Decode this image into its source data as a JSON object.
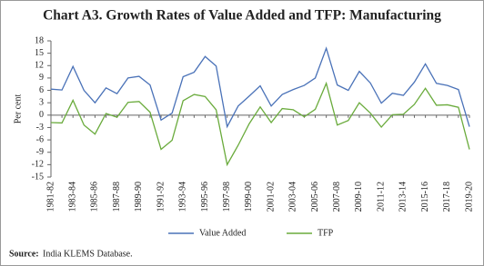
{
  "chart_data": {
    "type": "line",
    "title": "Chart A3. Growth Rates of Value Added and TFP: Manufacturing",
    "y_label": "Per cent",
    "source_label": "Source:",
    "source": "India KLEMS Database.",
    "categories": [
      "1981-82",
      null,
      "1983-84",
      null,
      "1985-86",
      null,
      "1987-88",
      null,
      "1989-90",
      null,
      "1991-92",
      null,
      "1993-94",
      null,
      "1995-96",
      null,
      "1997-98",
      null,
      "1999-00",
      null,
      "2001-02",
      null,
      "2003-04",
      null,
      "2005-06",
      null,
      "2007-08",
      null,
      "2009-10",
      null,
      "2011-12",
      null,
      "2013-14",
      null,
      "2015-16",
      null,
      "2017-18",
      null,
      "2019-20"
    ],
    "series": [
      {
        "name": "Value Added",
        "color": "#4a72b8",
        "values": [
          6.3,
          6.1,
          11.8,
          6.0,
          3.0,
          6.6,
          5.2,
          9.0,
          9.4,
          7.3,
          -1.2,
          0.5,
          9.3,
          10.4,
          14.2,
          11.9,
          -2.8,
          2.2,
          4.6,
          7.1,
          2.2,
          5.0,
          6.2,
          7.2,
          9.0,
          16.2,
          7.3,
          6.0,
          10.6,
          7.8,
          2.9,
          5.3,
          4.8,
          8.0,
          12.4,
          7.7,
          7.2,
          6.2,
          -2.8
        ]
      },
      {
        "name": "TFP",
        "color": "#6aab3c",
        "values": [
          -1.8,
          -1.9,
          3.6,
          -2.4,
          -4.6,
          0.4,
          -0.5,
          3.1,
          3.3,
          0.7,
          -8.3,
          -6.1,
          3.5,
          5.0,
          4.5,
          1.3,
          -12.0,
          -7.3,
          -2.1,
          2.0,
          -1.8,
          1.6,
          1.3,
          -0.4,
          1.4,
          7.7,
          -2.4,
          -1.3,
          3.0,
          0.5,
          -2.9,
          0.1,
          0.2,
          2.6,
          6.5,
          2.4,
          2.5,
          1.9,
          -8.3
        ]
      }
    ],
    "ylim": [
      -15,
      18
    ],
    "yticks": [
      -15,
      -12,
      -9,
      -6,
      -3,
      0,
      3,
      6,
      9,
      12,
      15,
      18
    ],
    "grid": false
  }
}
